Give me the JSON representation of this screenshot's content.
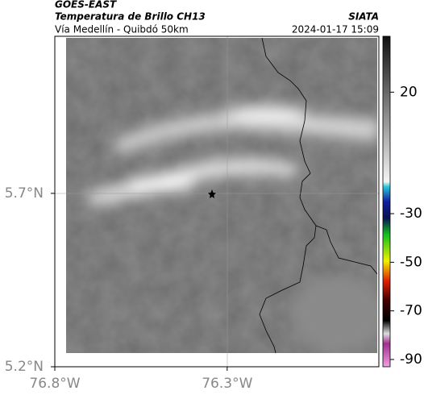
{
  "header": {
    "source": "GOES-EAST",
    "title": "Temperatura de Brillo CH13",
    "subtitle": "Vía Medellín - Quibdó 50km",
    "brand": "SIATA",
    "datetime": "2024-01-17 15:09"
  },
  "map": {
    "xlim": [
      -76.8,
      -75.86
    ],
    "ylim": [
      5.2,
      6.153
    ],
    "xticks": [
      {
        "value": -76.8,
        "label": "76.8°W"
      },
      {
        "value": -76.3,
        "label": "76.3°W"
      }
    ],
    "yticks": [
      {
        "value": 5.2,
        "label": "5.2°N"
      },
      {
        "value": 5.7,
        "label": "5.7°N"
      }
    ]
  },
  "colorbar": {
    "lim": [
      43,
      -93
    ],
    "ticks": [
      20,
      -30,
      -50,
      -70,
      -90
    ]
  }
}
